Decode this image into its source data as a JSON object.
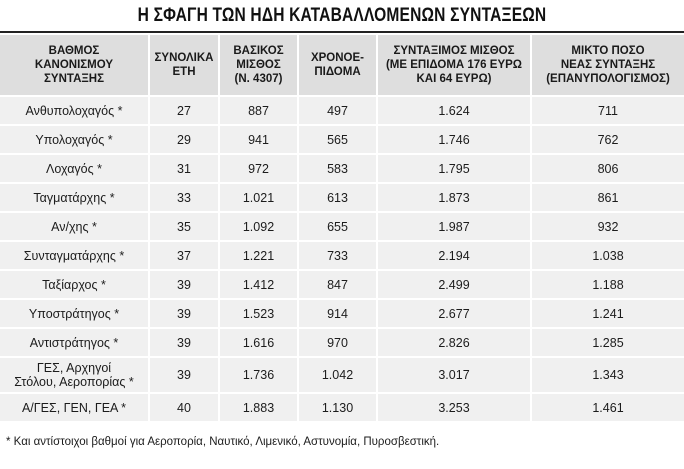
{
  "title": "Η ΣΦΑΓΗ ΤΩΝ ΗΔΗ ΚΑΤΑΒΑΛΛΟΜΕΝΩΝ ΣΥΝΤΑΞΕΩΝ",
  "table": {
    "headers": [
      [
        "ΒΑΘΜΟΣ",
        "ΚΑΝΟΝΙΣΜΟΥ",
        "ΣΥΝΤΑΞΗΣ"
      ],
      [
        "ΣΥΝΟΛΙΚΑ",
        "ΕΤΗ"
      ],
      [
        "ΒΑΣΙΚΟΣ",
        "ΜΙΣΘΟΣ",
        "(Ν. 4307)"
      ],
      [
        "ΧΡΟΝΟΕ-",
        "ΠΙΔΟΜΑ"
      ],
      [
        "ΣΥΝΤΑΞΙΜΟΣ ΜΙΣΘΟΣ",
        "(ΜΕ ΕΠΙΔΟΜΑ 176 ΕΥΡΩ",
        "ΚΑΙ 64 ΕΥΡΩ)"
      ],
      [
        "ΜΙΚΤΟ ΠΟΣΟ",
        "ΝΕΑΣ ΣΥΝΤΑΞΗΣ",
        "(ΕΠΑΝΥΠΟΛΟΓΙΣΜΟΣ)"
      ]
    ],
    "rows": [
      {
        "rank": [
          "Ανθυπολοχαγός *"
        ],
        "years": "27",
        "salary": "887",
        "allowance": "497",
        "pensionable": "1.624",
        "new_pension": "711"
      },
      {
        "rank": [
          "Υπολοχαγός *"
        ],
        "years": "29",
        "salary": "941",
        "allowance": "565",
        "pensionable": "1.746",
        "new_pension": "762"
      },
      {
        "rank": [
          "Λοχαγός *"
        ],
        "years": "31",
        "salary": "972",
        "allowance": "583",
        "pensionable": "1.795",
        "new_pension": "806"
      },
      {
        "rank": [
          "Ταγματάρχης *"
        ],
        "years": "33",
        "salary": "1.021",
        "allowance": "613",
        "pensionable": "1.873",
        "new_pension": "861"
      },
      {
        "rank": [
          "Αν/χης *"
        ],
        "years": "35",
        "salary": "1.092",
        "allowance": "655",
        "pensionable": "1.987",
        "new_pension": "932"
      },
      {
        "rank": [
          "Συνταγματάρχης *"
        ],
        "years": "37",
        "salary": "1.221",
        "allowance": "733",
        "pensionable": "2.194",
        "new_pension": "1.038"
      },
      {
        "rank": [
          "Ταξίαρχος *"
        ],
        "years": "39",
        "salary": "1.412",
        "allowance": "847",
        "pensionable": "2.499",
        "new_pension": "1.188"
      },
      {
        "rank": [
          "Υποστράτηγος *"
        ],
        "years": "39",
        "salary": "1.523",
        "allowance": "914",
        "pensionable": "2.677",
        "new_pension": "1.241"
      },
      {
        "rank": [
          "Αντιστράτηγος *"
        ],
        "years": "39",
        "salary": "1.616",
        "allowance": "970",
        "pensionable": "2.826",
        "new_pension": "1.285"
      },
      {
        "rank": [
          "ΓΕΣ, Αρχηγοί",
          "Στόλου, Αεροπορίας *"
        ],
        "years": "39",
        "salary": "1.736",
        "allowance": "1.042",
        "pensionable": "3.017",
        "new_pension": "1.343"
      },
      {
        "rank": [
          "Α/ΓΕΣ, ΓΕΝ, ΓΕΑ *"
        ],
        "years": "40",
        "salary": "1.883",
        "allowance": "1.130",
        "pensionable": "3.253",
        "new_pension": "1.461"
      }
    ]
  },
  "footnote": "* Και αντίστοιχοι βαθμοί για Αεροπορία, Ναυτικό, Λιμενικό, Αστυνομία, Πυροσβεστική.",
  "colors": {
    "header_bg": "#dedede",
    "row_bg": "#f0f0f0",
    "text": "#1c1c1c"
  }
}
